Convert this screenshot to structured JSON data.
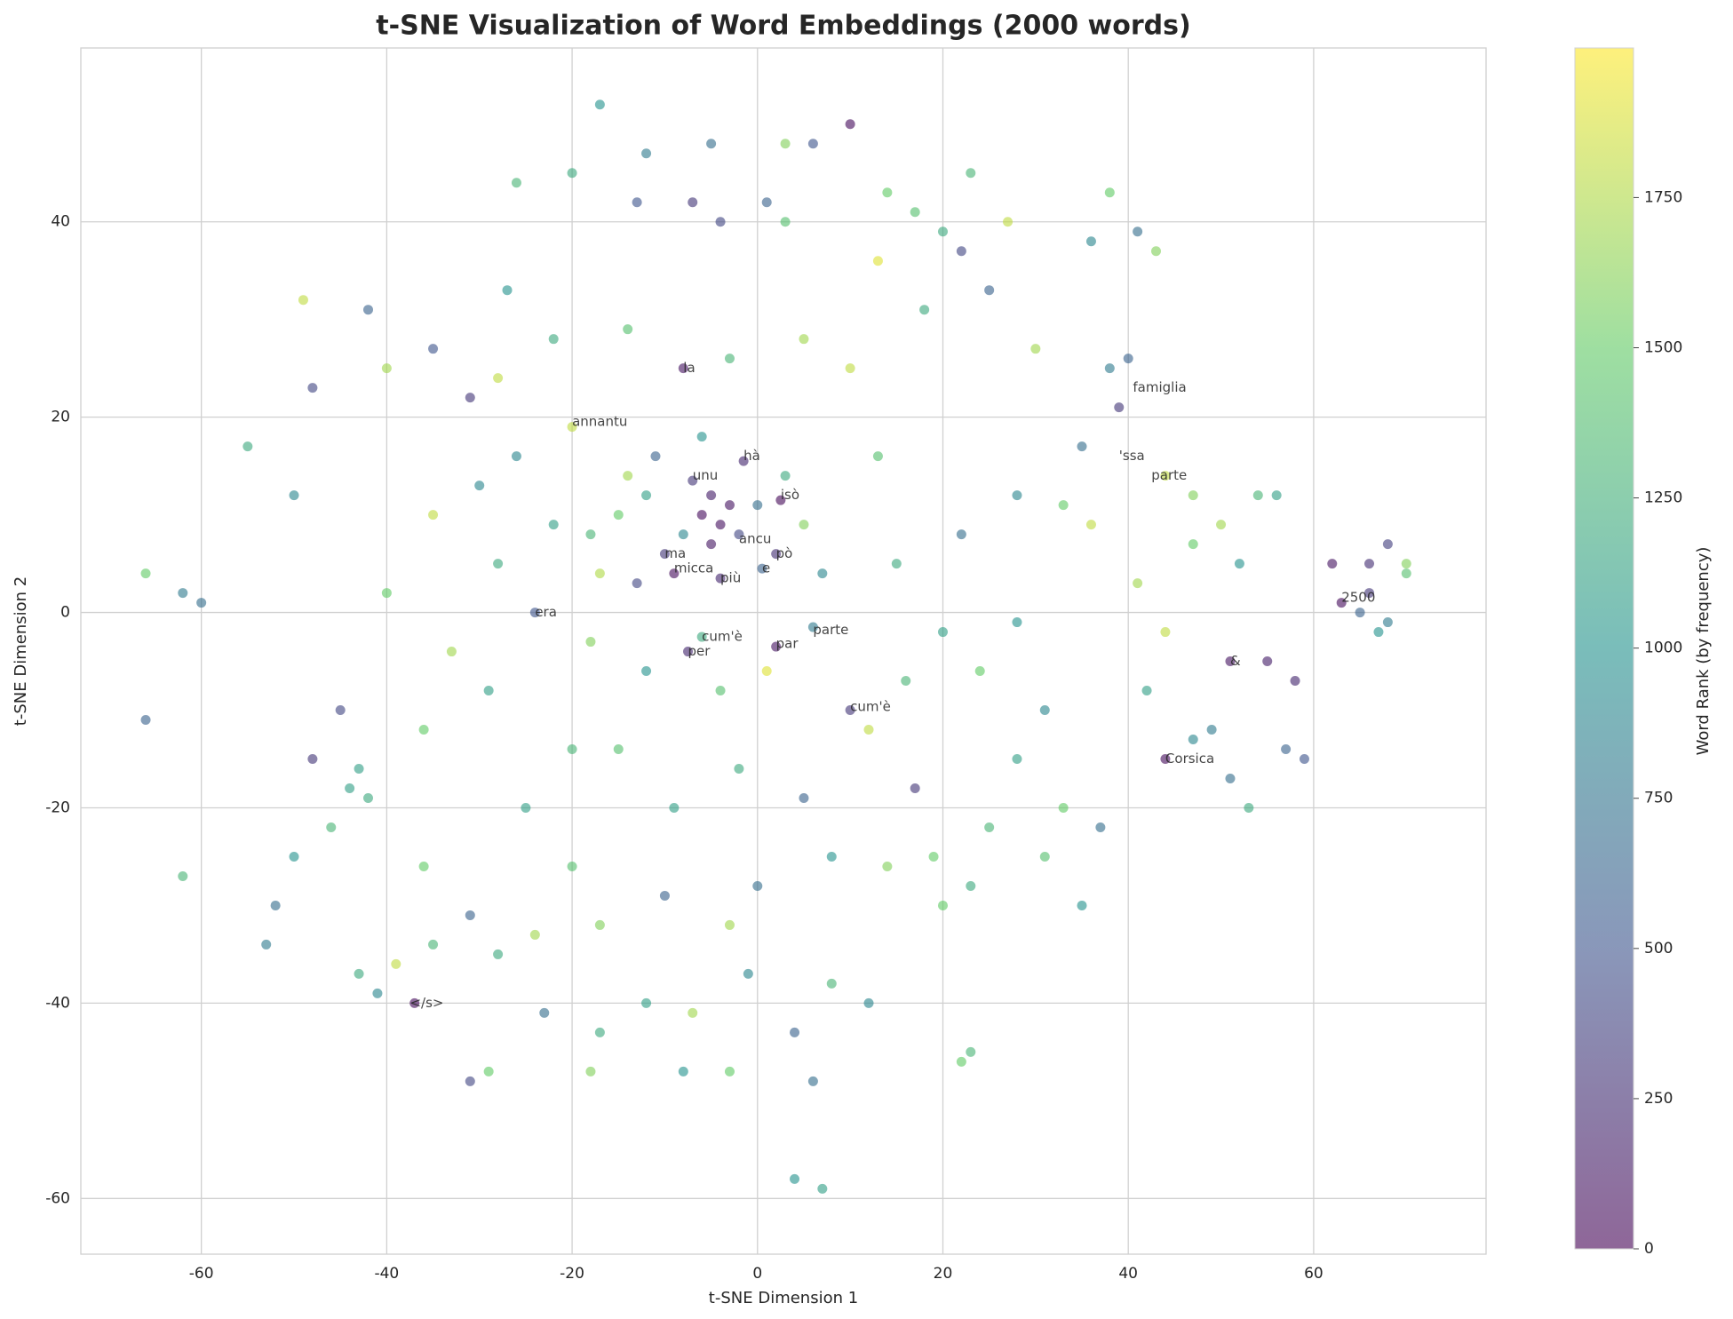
{
  "chart_data": {
    "type": "scatter",
    "title": "t-SNE Visualization of Word Embeddings (2000 words)",
    "xlabel": "t-SNE Dimension 1",
    "ylabel": "t-SNE Dimension 2",
    "colorbar_label": "Word Rank (by frequency)",
    "xlim": [
      -73,
      78.6
    ],
    "ylim": [
      -65.7,
      57.8
    ],
    "xticks": [
      -60,
      -40,
      -20,
      0,
      20,
      40,
      60
    ],
    "yticks": [
      -60,
      -40,
      -20,
      0,
      20,
      40
    ],
    "clim": [
      0,
      1999
    ],
    "cticks": [
      0,
      250,
      500,
      750,
      1000,
      1250,
      1500,
      1750
    ],
    "colormap": [
      "#440154",
      "#3b528b",
      "#21918c",
      "#5ec962",
      "#fde725"
    ],
    "alpha": 0.6,
    "grid": true,
    "x": [
      -8,
      -20,
      -1.5,
      -7,
      -5,
      -3,
      -6,
      -4,
      -2,
      -5,
      -8,
      -10,
      -9,
      -4,
      0.5,
      2,
      2.5,
      0,
      -12,
      -15,
      -14,
      -18,
      -11,
      -6,
      3,
      5,
      7,
      -13,
      -17,
      -22,
      -6,
      -7.5,
      2,
      6,
      -24,
      10,
      -4,
      1,
      -12,
      -18,
      -28,
      -30,
      -35,
      -40,
      -45,
      -44,
      -43,
      -42,
      -46,
      -48,
      -50,
      -52,
      -53,
      -62,
      -66,
      -66,
      -62,
      -60,
      -55,
      -50,
      -48,
      -49,
      -42,
      -40,
      -35,
      -31,
      -27,
      -26,
      -20,
      -17,
      -12,
      -5,
      3,
      6,
      10,
      1,
      3,
      -7,
      -13,
      -4,
      14,
      17,
      20,
      23,
      27,
      22,
      18,
      25,
      30,
      13,
      36,
      38,
      41,
      43,
      40,
      39,
      38,
      35,
      33,
      36,
      44,
      47,
      50,
      47,
      54,
      56,
      52,
      41,
      44,
      42,
      51,
      55,
      58,
      49,
      51,
      57,
      59,
      53,
      44,
      47,
      63,
      66,
      68,
      70,
      68,
      65,
      67,
      70,
      62,
      66,
      31,
      28,
      25,
      23,
      20,
      31,
      35,
      37,
      33,
      17,
      22,
      23,
      12,
      8,
      4,
      6,
      7,
      4,
      -3,
      -7,
      -8,
      -12,
      -18,
      -17,
      -23,
      -29,
      -31,
      -28,
      -37,
      -41,
      -43,
      -39,
      -35,
      -36,
      -31,
      -24,
      -20,
      -17,
      -10,
      -3,
      -1,
      0,
      8,
      14,
      19,
      -15,
      -9,
      -2,
      5,
      12,
      16,
      20,
      24,
      28,
      15,
      22,
      28,
      13,
      10,
      5,
      -3,
      -14,
      -22,
      -28,
      -26,
      -33,
      -36,
      -29,
      -20,
      -25
    ],
    "y": [
      25,
      19,
      15.5,
      13.5,
      12,
      11,
      10,
      9,
      8,
      7,
      8,
      6,
      4,
      3.5,
      4.5,
      6,
      11.5,
      11,
      12,
      10,
      14,
      8,
      16,
      18,
      14,
      9,
      4,
      3,
      4,
      9,
      -2.5,
      -4,
      -3.5,
      -1.5,
      0,
      -10,
      -8,
      -6,
      -6,
      -3,
      5,
      13,
      10,
      2,
      -10,
      -18,
      -16,
      -19,
      -22,
      -15,
      -25,
      -30,
      -34,
      -27,
      -11,
      4,
      2,
      1,
      17,
      12,
      23,
      32,
      31,
      25,
      27,
      22,
      33,
      44,
      45,
      52,
      47,
      48,
      48,
      48,
      50,
      42,
      40,
      42,
      42,
      40,
      43,
      41,
      39,
      45,
      40,
      37,
      31,
      33,
      27,
      36,
      38,
      43,
      39,
      37,
      26,
      21,
      25,
      17,
      11,
      9,
      14,
      12,
      9,
      7,
      12,
      12,
      5,
      3,
      -2,
      -8,
      -5,
      -5,
      -7,
      -12,
      -17,
      -14,
      -15,
      -20,
      -15,
      -13,
      1,
      5,
      7,
      4,
      -1,
      0,
      -2,
      5,
      5,
      2,
      -10,
      -15,
      -22,
      -28,
      -30,
      -25,
      -30,
      -22,
      -20,
      -18,
      -46,
      -45,
      -40,
      -38,
      -43,
      -48,
      -59,
      -58,
      -47,
      -41,
      -47,
      -40,
      -47,
      -43,
      -41,
      -47,
      -48,
      -35,
      -40,
      -39,
      -37,
      -36,
      -34,
      -26,
      -31,
      -33,
      -26,
      -32,
      -29,
      -32,
      -37,
      -28,
      -25,
      -26,
      -25,
      -14,
      -20,
      -16,
      -19,
      -12,
      -7,
      -2,
      -6,
      -1,
      5,
      8,
      12,
      16,
      25,
      28,
      26,
      29,
      28,
      24,
      16,
      -4,
      -12,
      -8,
      -14,
      -20
    ],
    "c": [
      100,
      1800,
      200,
      300,
      150,
      100,
      50,
      80,
      400,
      120,
      900,
      300,
      50,
      200,
      600,
      250,
      30,
      700,
      1100,
      1500,
      1700,
      1300,
      600,
      1000,
      1200,
      1600,
      900,
      400,
      1750,
      1100,
      1200,
      200,
      100,
      800,
      500,
      300,
      1400,
      1900,
      1000,
      1600,
      1200,
      900,
      1800,
      1500,
      400,
      1100,
      1100,
      1200,
      1300,
      300,
      1000,
      700,
      800,
      1300,
      600,
      1500,
      800,
      700,
      1200,
      900,
      400,
      1800,
      600,
      1700,
      500,
      300,
      1000,
      1300,
      1200,
      1000,
      800,
      700,
      1600,
      500,
      50,
      600,
      1400,
      300,
      500,
      400,
      1500,
      1400,
      1200,
      1300,
      1800,
      400,
      1200,
      600,
      1700,
      1900,
      900,
      1500,
      700,
      1600,
      600,
      300,
      800,
      700,
      1500,
      1800,
      1800,
      1600,
      1700,
      1500,
      1300,
      1100,
      1000,
      1700,
      1800,
      1100,
      100,
      150,
      200,
      800,
      700,
      600,
      500,
      1200,
      50,
      900,
      50,
      250,
      350,
      1400,
      800,
      600,
      1000,
      1600,
      100,
      300,
      900,
      1100,
      1300,
      1200,
      1500,
      1400,
      1000,
      700,
      1500,
      300,
      1500,
      1300,
      900,
      1300,
      600,
      700,
      1100,
      1000,
      1500,
      1700,
      1000,
      1100,
      1600,
      1200,
      700,
      1500,
      400,
      1200,
      50,
      900,
      1200,
      1800,
      1300,
      1500,
      600,
      1700,
      1400,
      1600,
      600,
      1700,
      900,
      700,
      1000,
      1600,
      1500,
      1400,
      1100,
      1200,
      600,
      1800,
      1300,
      1100,
      1500,
      1000,
      1200,
      700,
      900,
      1400,
      1800,
      1700,
      1300,
      1400,
      1200,
      1800,
      900,
      1700,
      1500,
      1100,
      1300,
      1100
    ],
    "annotations": [
      {
        "text": "la",
        "x": -8,
        "y": 25
      },
      {
        "text": "annantu",
        "x": -20,
        "y": 19.5
      },
      {
        "text": "hà",
        "x": -1.5,
        "y": 16
      },
      {
        "text": "unu",
        "x": -7,
        "y": 14
      },
      {
        "text": "isò",
        "x": 2.5,
        "y": 12
      },
      {
        "text": "ancu",
        "x": -2,
        "y": 7.5
      },
      {
        "text": "pò",
        "x": 2,
        "y": 6
      },
      {
        "text": "ma",
        "x": -10,
        "y": 6
      },
      {
        "text": "micca",
        "x": -9,
        "y": 4.5
      },
      {
        "text": "più",
        "x": -4,
        "y": 3.5
      },
      {
        "text": "e",
        "x": 0.5,
        "y": 4.5
      },
      {
        "text": "era",
        "x": -24,
        "y": 0
      },
      {
        "text": "cum'è",
        "x": -6,
        "y": -2.5
      },
      {
        "text": "per",
        "x": -7.5,
        "y": -4
      },
      {
        "text": "par",
        "x": 2,
        "y": -3.2
      },
      {
        "text": "parte",
        "x": 6,
        "y": -1.8
      },
      {
        "text": "cum'è",
        "x": 10,
        "y": -9.7
      },
      {
        "text": "famiglia",
        "x": 40.5,
        "y": 23
      },
      {
        "text": "'ssa",
        "x": 39,
        "y": 16
      },
      {
        "text": "parte",
        "x": 42.5,
        "y": 14
      },
      {
        "text": "&",
        "x": 51,
        "y": -5
      },
      {
        "text": "Corsica",
        "x": 44,
        "y": -15
      },
      {
        "text": "</s>",
        "x": -37.5,
        "y": -40
      },
      {
        "text": "2500",
        "x": 63,
        "y": 1.5
      }
    ]
  }
}
